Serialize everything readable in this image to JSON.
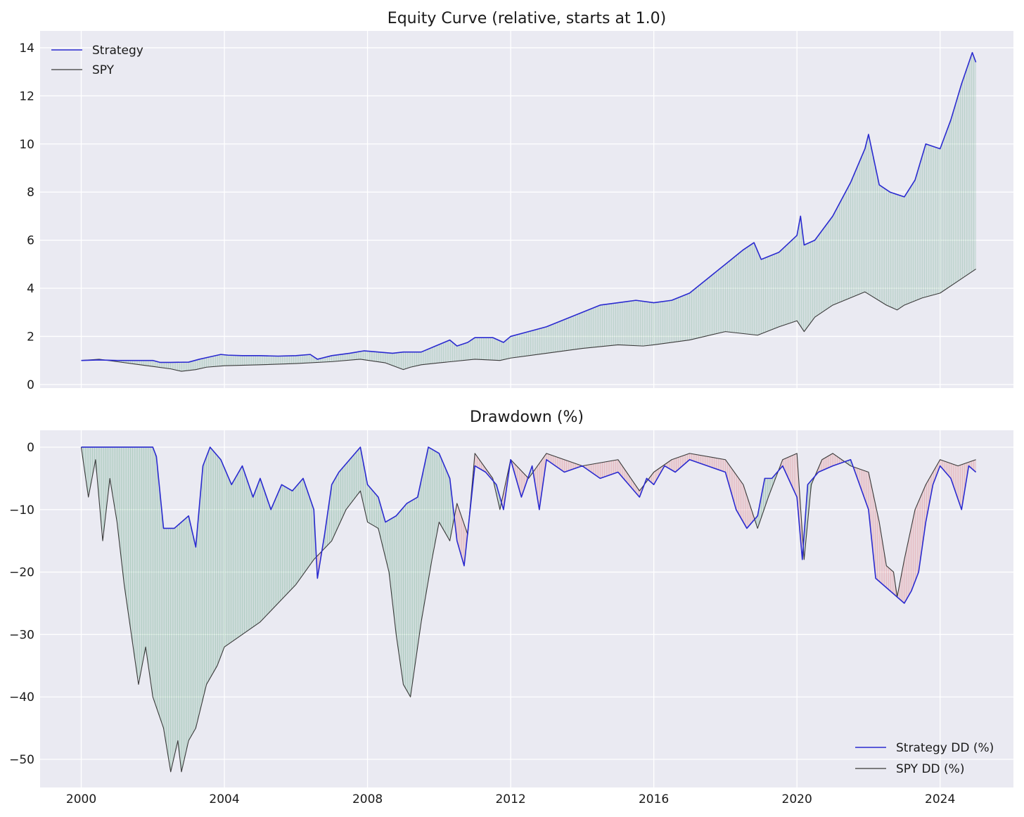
{
  "chart_data": [
    {
      "type": "line",
      "title": "Equity Curve (relative, starts at 1.0)",
      "xlabel": "",
      "ylabel": "",
      "xlim": [
        1998.85,
        2026.05
      ],
      "ylim": [
        -0.15,
        14.7
      ],
      "x_ticks": [
        2000,
        2004,
        2008,
        2012,
        2016,
        2020,
        2024
      ],
      "x_tick_labels": [
        "",
        "",
        "",
        "",
        "",
        "",
        ""
      ],
      "y_ticks": [
        0,
        2,
        4,
        6,
        8,
        10,
        12,
        14
      ],
      "y_tick_labels": [
        "0",
        "2",
        "4",
        "6",
        "8",
        "10",
        "12",
        "14"
      ],
      "grid": true,
      "legend": "top-left",
      "fill_between": {
        "color": "#2e8b57",
        "opacity": 0.12
      },
      "series": [
        {
          "name": "Strategy",
          "color": "#2a2ad0",
          "x": [
            2000.0,
            2000.5,
            2001.0,
            2001.5,
            2002.0,
            2002.2,
            2002.5,
            2003.0,
            2003.3,
            2003.6,
            2003.9,
            2004.1,
            2004.5,
            2005.0,
            2005.5,
            2006.0,
            2006.4,
            2006.6,
            2007.0,
            2007.5,
            2007.9,
            2008.3,
            2008.7,
            2009.0,
            2009.5,
            2009.9,
            2010.3,
            2010.5,
            2010.8,
            2011.0,
            2011.5,
            2011.8,
            2012.0,
            2012.5,
            2013.0,
            2013.5,
            2014.0,
            2014.5,
            2015.0,
            2015.5,
            2016.0,
            2016.5,
            2017.0,
            2017.5,
            2018.0,
            2018.5,
            2018.8,
            2019.0,
            2019.5,
            2020.0,
            2020.1,
            2020.2,
            2020.5,
            2021.0,
            2021.5,
            2021.9,
            2022.0,
            2022.3,
            2022.6,
            2023.0,
            2023.3,
            2023.6,
            2024.0,
            2024.3,
            2024.6,
            2024.9,
            2025.0
          ],
          "y": [
            1.0,
            1.02,
            1.0,
            1.0,
            1.0,
            0.92,
            0.92,
            0.93,
            1.05,
            1.15,
            1.25,
            1.22,
            1.2,
            1.2,
            1.18,
            1.2,
            1.25,
            1.05,
            1.2,
            1.3,
            1.4,
            1.35,
            1.3,
            1.35,
            1.35,
            1.6,
            1.85,
            1.6,
            1.75,
            1.95,
            1.95,
            1.75,
            2.0,
            2.2,
            2.4,
            2.7,
            3.0,
            3.3,
            3.4,
            3.5,
            3.4,
            3.5,
            3.8,
            4.4,
            5.0,
            5.6,
            5.9,
            5.2,
            5.5,
            6.2,
            7.0,
            5.8,
            6.0,
            7.0,
            8.4,
            9.8,
            10.4,
            8.3,
            8.0,
            7.8,
            8.5,
            10.0,
            9.8,
            11.0,
            12.5,
            13.8,
            13.4
          ]
        },
        {
          "name": "SPY",
          "color": "#3a3a3a",
          "x": [
            2000.0,
            2000.5,
            2001.0,
            2001.5,
            2002.0,
            2002.5,
            2002.8,
            2003.2,
            2003.5,
            2004.0,
            2005.0,
            2006.0,
            2007.0,
            2007.8,
            2008.5,
            2009.0,
            2009.2,
            2009.5,
            2010.0,
            2011.0,
            2011.7,
            2012.0,
            2013.0,
            2014.0,
            2015.0,
            2015.7,
            2016.0,
            2017.0,
            2018.0,
            2018.9,
            2019.5,
            2020.0,
            2020.2,
            2020.5,
            2021.0,
            2021.9,
            2022.5,
            2022.8,
            2023.0,
            2023.5,
            2024.0,
            2024.5,
            2025.0
          ],
          "y": [
            1.0,
            1.05,
            0.95,
            0.85,
            0.75,
            0.65,
            0.55,
            0.62,
            0.72,
            0.78,
            0.82,
            0.87,
            0.95,
            1.05,
            0.9,
            0.62,
            0.72,
            0.82,
            0.9,
            1.05,
            1.0,
            1.1,
            1.3,
            1.5,
            1.65,
            1.6,
            1.65,
            1.85,
            2.2,
            2.05,
            2.4,
            2.65,
            2.2,
            2.8,
            3.3,
            3.85,
            3.3,
            3.1,
            3.3,
            3.6,
            3.8,
            4.3,
            4.8
          ]
        }
      ]
    },
    {
      "type": "line",
      "title": "Drawdown (%)",
      "xlabel": "",
      "ylabel": "",
      "xlim": [
        1998.85,
        2026.05
      ],
      "ylim": [
        -54.5,
        2.7
      ],
      "x_ticks": [
        2000,
        2004,
        2008,
        2012,
        2016,
        2020,
        2024
      ],
      "x_tick_labels": [
        "2000",
        "2004",
        "2008",
        "2012",
        "2016",
        "2020",
        "2024"
      ],
      "y_ticks": [
        0,
        -10,
        -20,
        -30,
        -40,
        -50
      ],
      "y_tick_labels": [
        "0",
        "−10",
        "−20",
        "−30",
        "−40",
        "−50"
      ],
      "grid": true,
      "legend": "bottom-right",
      "fill_between": {
        "above_color": "#2e8b57",
        "below_color": "#e05050",
        "opacity": 0.15
      },
      "series": [
        {
          "name": "Strategy DD (%)",
          "color": "#2a2ad0",
          "x": [
            2000.0,
            2001.0,
            2002.0,
            2002.1,
            2002.3,
            2002.6,
            2003.0,
            2003.2,
            2003.4,
            2003.6,
            2003.9,
            2004.2,
            2004.5,
            2004.8,
            2005.0,
            2005.3,
            2005.6,
            2005.9,
            2006.2,
            2006.5,
            2006.6,
            2006.8,
            2007.0,
            2007.2,
            2007.5,
            2007.8,
            2008.0,
            2008.3,
            2008.5,
            2008.8,
            2009.1,
            2009.4,
            2009.7,
            2010.0,
            2010.3,
            2010.5,
            2010.7,
            2011.0,
            2011.3,
            2011.6,
            2011.8,
            2012.0,
            2012.3,
            2012.6,
            2012.8,
            2013.0,
            2013.5,
            2014.0,
            2014.5,
            2015.0,
            2015.6,
            2015.8,
            2016.0,
            2016.3,
            2016.6,
            2017.0,
            2017.5,
            2018.0,
            2018.3,
            2018.6,
            2018.9,
            2019.1,
            2019.3,
            2019.6,
            2020.0,
            2020.15,
            2020.3,
            2020.6,
            2021.0,
            2021.5,
            2022.0,
            2022.2,
            2022.4,
            2022.6,
            2022.8,
            2023.0,
            2023.2,
            2023.4,
            2023.6,
            2023.8,
            2024.0,
            2024.3,
            2024.6,
            2024.8,
            2025.0
          ],
          "y": [
            0,
            0,
            0,
            -1.5,
            -13,
            -13,
            -11,
            -16,
            -3,
            0,
            -2,
            -6,
            -3,
            -8,
            -5,
            -10,
            -6,
            -7,
            -5,
            -10,
            -21,
            -14,
            -6,
            -4,
            -2,
            0,
            -6,
            -8,
            -12,
            -11,
            -9,
            -8,
            0,
            -1,
            -5,
            -15,
            -19,
            -3,
            -4,
            -6,
            -10,
            -2,
            -8,
            -3,
            -10,
            -2,
            -4,
            -3,
            -5,
            -4,
            -8,
            -5,
            -6,
            -3,
            -4,
            -2,
            -3,
            -4,
            -10,
            -13,
            -11,
            -5,
            -5,
            -3,
            -8,
            -18,
            -6,
            -4,
            -3,
            -2,
            -10,
            -21,
            -22,
            -23,
            -24,
            -25,
            -23,
            -20,
            -12,
            -6,
            -3,
            -5,
            -10,
            -3,
            -4
          ]
        },
        {
          "name": "SPY DD (%)",
          "color": "#3a3a3a",
          "x": [
            2000.0,
            2000.2,
            2000.4,
            2000.6,
            2000.8,
            2001.0,
            2001.2,
            2001.4,
            2001.6,
            2001.8,
            2002.0,
            2002.3,
            2002.5,
            2002.7,
            2002.8,
            2003.0,
            2003.2,
            2003.5,
            2003.8,
            2004.0,
            2004.5,
            2005.0,
            2005.5,
            2006.0,
            2006.5,
            2007.0,
            2007.4,
            2007.8,
            2008.0,
            2008.3,
            2008.6,
            2008.8,
            2009.0,
            2009.2,
            2009.5,
            2009.8,
            2010.0,
            2010.3,
            2010.5,
            2010.8,
            2011.0,
            2011.5,
            2011.7,
            2012.0,
            2012.5,
            2013.0,
            2014.0,
            2015.0,
            2015.6,
            2016.0,
            2016.5,
            2017.0,
            2018.0,
            2018.5,
            2018.9,
            2019.2,
            2019.6,
            2020.0,
            2020.2,
            2020.4,
            2020.7,
            2021.0,
            2021.5,
            2022.0,
            2022.3,
            2022.5,
            2022.7,
            2022.8,
            2023.0,
            2023.3,
            2023.6,
            2024.0,
            2024.5,
            2025.0
          ],
          "y": [
            0,
            -8,
            -2,
            -15,
            -5,
            -12,
            -22,
            -30,
            -38,
            -32,
            -40,
            -45,
            -52,
            -47,
            -52,
            -47,
            -45,
            -38,
            -35,
            -32,
            -30,
            -28,
            -25,
            -22,
            -18,
            -15,
            -10,
            -7,
            -12,
            -13,
            -20,
            -30,
            -38,
            -40,
            -28,
            -18,
            -12,
            -15,
            -9,
            -14,
            -1,
            -5,
            -10,
            -2,
            -5,
            -1,
            -3,
            -2,
            -7,
            -4,
            -2,
            -1,
            -2,
            -6,
            -13,
            -8,
            -2,
            -1,
            -18,
            -6,
            -2,
            -1,
            -3,
            -4,
            -12,
            -19,
            -20,
            -24,
            -18,
            -10,
            -6,
            -2,
            -3,
            -2
          ]
        }
      ]
    }
  ]
}
